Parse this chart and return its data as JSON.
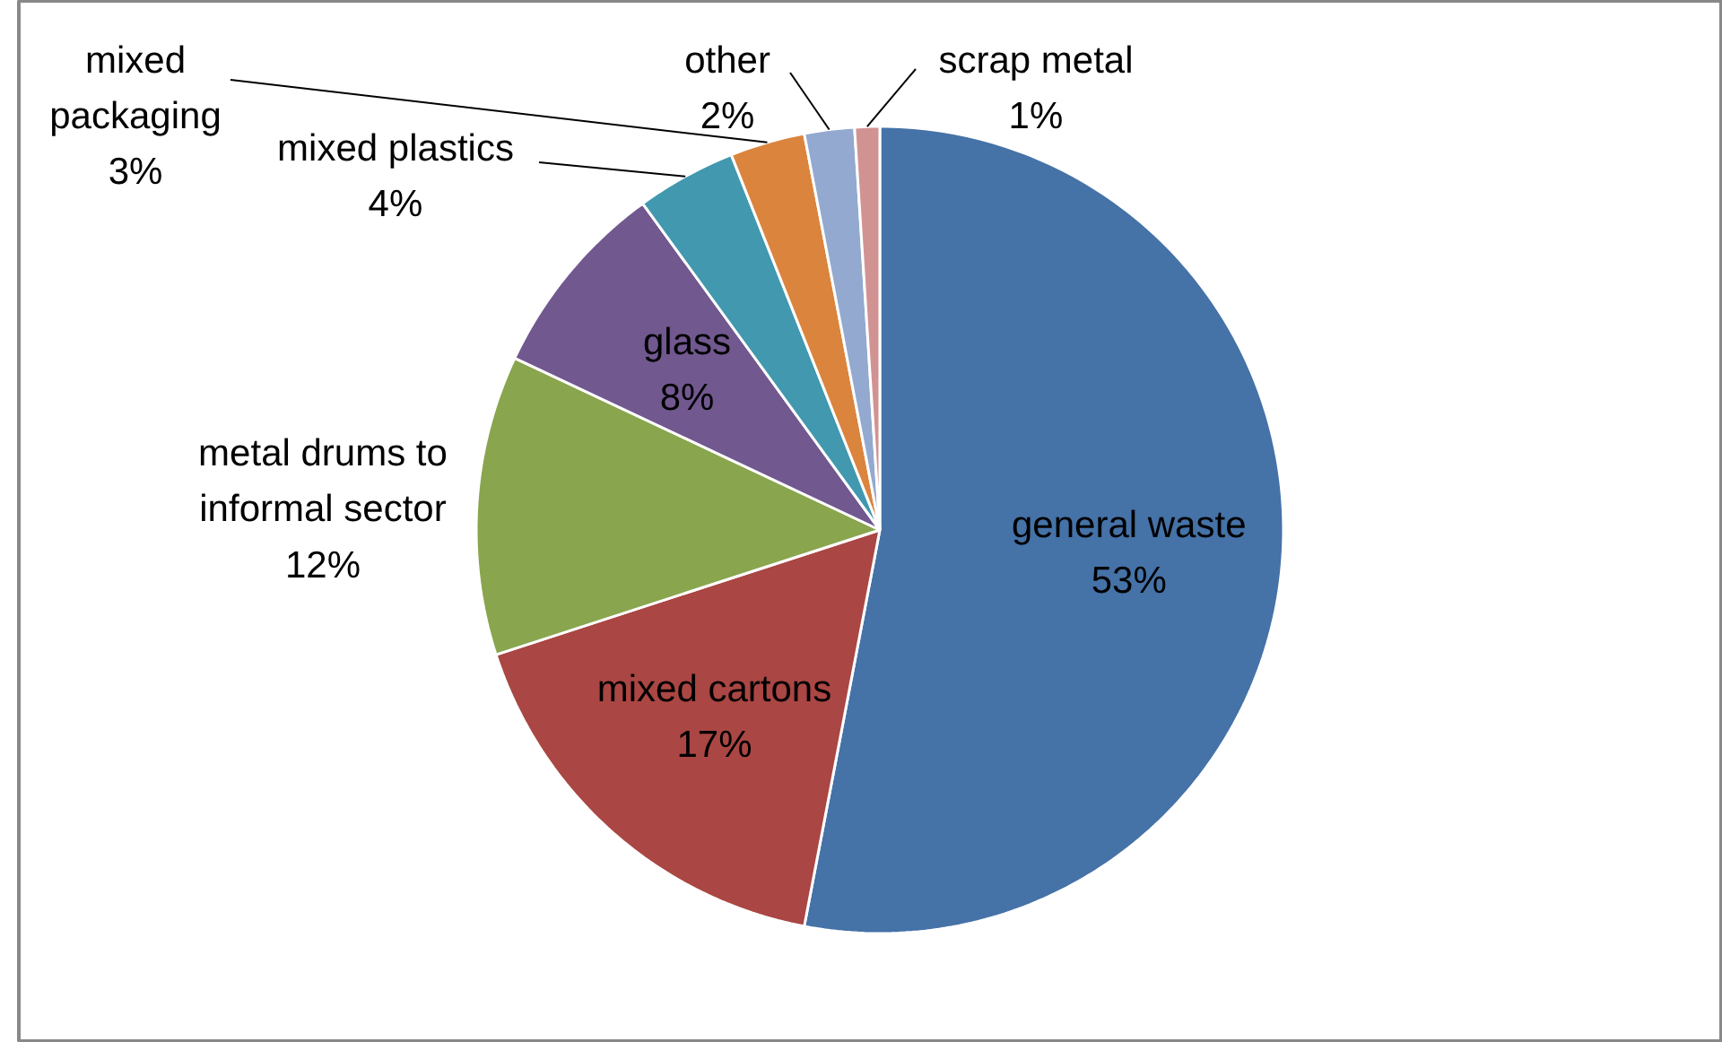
{
  "chart_data": {
    "type": "pie",
    "categories": [
      "general waste",
      "mixed cartons",
      "metal drums to informal sector",
      "glass",
      "mixed plastics",
      "mixed packaging",
      "other",
      "scrap metal"
    ],
    "values": [
      53,
      17,
      12,
      8,
      4,
      3,
      2,
      1
    ],
    "colors": [
      "#4572a7",
      "#aa4643",
      "#89a54e",
      "#71588f",
      "#4198af",
      "#db843d",
      "#93a9cf",
      "#d19392"
    ],
    "value_labels": [
      "53%",
      "17%",
      "12%",
      "8%",
      "4%",
      "3%",
      "2%",
      "1%"
    ]
  }
}
